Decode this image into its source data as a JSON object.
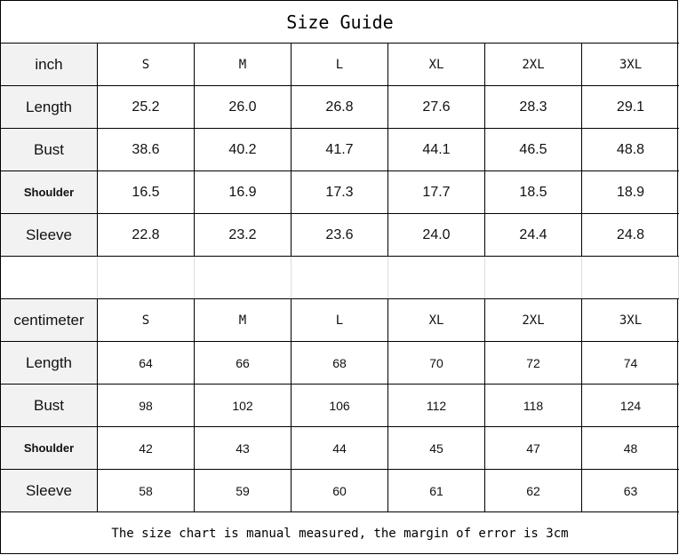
{
  "title": "Size Guide",
  "inch": {
    "unit_label": "inch",
    "sizes": [
      "S",
      "M",
      "L",
      "XL",
      "2XL",
      "3XL"
    ],
    "rows": [
      {
        "label": "Length",
        "values": [
          "25.2",
          "26.0",
          "26.8",
          "27.6",
          "28.3",
          "29.1"
        ]
      },
      {
        "label": "Bust",
        "values": [
          "38.6",
          "40.2",
          "41.7",
          "44.1",
          "46.5",
          "48.8"
        ]
      },
      {
        "label": "Shoulder",
        "values": [
          "16.5",
          "16.9",
          "17.3",
          "17.7",
          "18.5",
          "18.9"
        ]
      },
      {
        "label": "Sleeve",
        "values": [
          "22.8",
          "23.2",
          "23.6",
          "24.0",
          "24.4",
          "24.8"
        ]
      }
    ]
  },
  "centimeter": {
    "unit_label": "centimeter",
    "sizes": [
      "S",
      "M",
      "L",
      "XL",
      "2XL",
      "3XL"
    ],
    "rows": [
      {
        "label": "Length",
        "values": [
          "64",
          "66",
          "68",
          "70",
          "72",
          "74"
        ]
      },
      {
        "label": "Bust",
        "values": [
          "98",
          "102",
          "106",
          "112",
          "118",
          "124"
        ]
      },
      {
        "label": "Shoulder",
        "values": [
          "42",
          "43",
          "44",
          "45",
          "47",
          "48"
        ]
      },
      {
        "label": "Sleeve",
        "values": [
          "58",
          "59",
          "60",
          "61",
          "62",
          "63"
        ]
      }
    ]
  },
  "footer": "The size chart is manual measured, the margin of error is 3cm",
  "colors": {
    "header_cell_bg": "#f2f2f2",
    "border": "#000000"
  }
}
